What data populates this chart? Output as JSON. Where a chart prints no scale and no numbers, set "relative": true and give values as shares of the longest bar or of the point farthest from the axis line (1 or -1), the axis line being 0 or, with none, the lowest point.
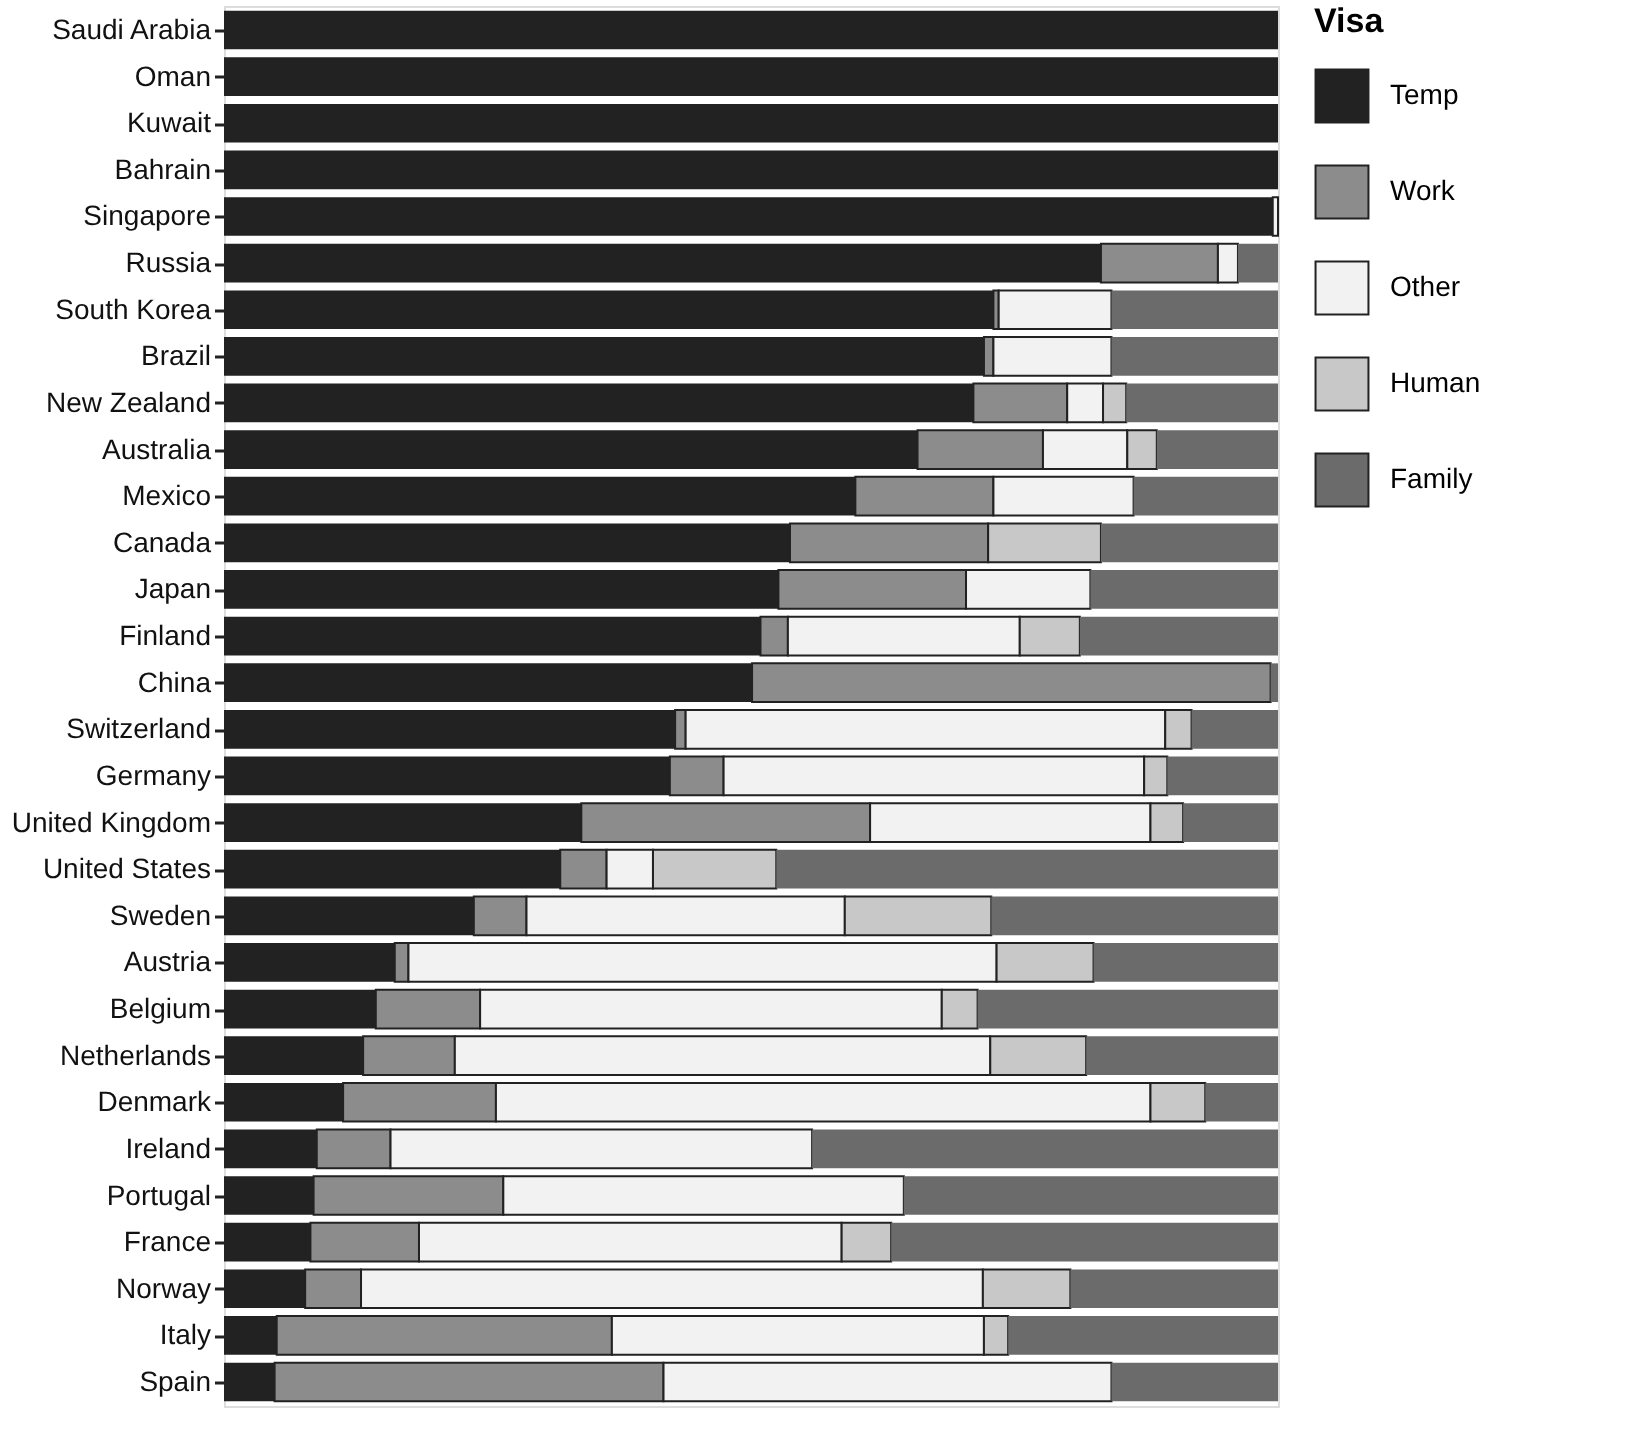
{
  "chart_data": {
    "type": "bar",
    "orientation": "horizontal",
    "stacked": true,
    "relative": true,
    "legend_title": "Visa",
    "legend": "right",
    "categories": [
      "Saudi Arabia",
      "Oman",
      "Kuwait",
      "Bahrain",
      "Singapore",
      "Russia",
      "South Korea",
      "Brazil",
      "New Zealand",
      "Australia",
      "Mexico",
      "Canada",
      "Japan",
      "Finland",
      "China",
      "Switzerland",
      "Germany",
      "United Kingdom",
      "United States",
      "Sweden",
      "Austria",
      "Belgium",
      "Netherlands",
      "Denmark",
      "Ireland",
      "Portugal",
      "France",
      "Norway",
      "Italy",
      "Spain"
    ],
    "series": [
      {
        "name": "Temp",
        "color": "#222222",
        "values": [
          1,
          1,
          1,
          1,
          0.995,
          0.832,
          0.73,
          0.721,
          0.711,
          0.658,
          0.599,
          0.537,
          0.526,
          0.509,
          0.501,
          0.428,
          0.423,
          0.339,
          0.319,
          0.237,
          0.162,
          0.144,
          0.132,
          0.113,
          0.088,
          0.085,
          0.082,
          0.077,
          0.05,
          0.048
        ]
      },
      {
        "name": "Work",
        "color": "#8c8c8c",
        "values": [
          0,
          0,
          0,
          0,
          0,
          0.111,
          0.005,
          0.009,
          0.089,
          0.119,
          0.131,
          0.188,
          0.178,
          0.026,
          0.492,
          0.01,
          0.051,
          0.274,
          0.044,
          0.05,
          0.013,
          0.099,
          0.087,
          0.145,
          0.07,
          0.18,
          0.103,
          0.053,
          0.318,
          0.369
        ]
      },
      {
        "name": "Other",
        "color": "#f2f2f2",
        "values": [
          0,
          0,
          0,
          0,
          0.005,
          0.019,
          0.107,
          0.112,
          0.034,
          0.08,
          0.133,
          0,
          0.118,
          0.22,
          0,
          0.455,
          0.399,
          0.266,
          0.044,
          0.302,
          0.558,
          0.438,
          0.508,
          0.621,
          0.4,
          0.38,
          0.401,
          0.59,
          0.353,
          0.425
        ]
      },
      {
        "name": "Human",
        "color": "#c8c8c8",
        "values": [
          0,
          0,
          0,
          0,
          0,
          0,
          0,
          0,
          0.022,
          0.028,
          0,
          0.107,
          0,
          0.057,
          0,
          0.025,
          0.022,
          0.031,
          0.117,
          0.139,
          0.092,
          0.034,
          0.091,
          0.052,
          0,
          0,
          0.047,
          0.083,
          0.023,
          0
        ]
      },
      {
        "name": "Family",
        "color": "#6b6b6b",
        "values": [
          0,
          0,
          0,
          0,
          0,
          0.038,
          0.158,
          0.158,
          0.144,
          0.115,
          0.137,
          0.168,
          0.178,
          0.188,
          0.007,
          0.082,
          0.105,
          0.09,
          0.476,
          0.272,
          0.175,
          0.285,
          0.182,
          0.069,
          0.442,
          0.355,
          0.367,
          0.197,
          0.256,
          0.158
        ]
      }
    ]
  }
}
